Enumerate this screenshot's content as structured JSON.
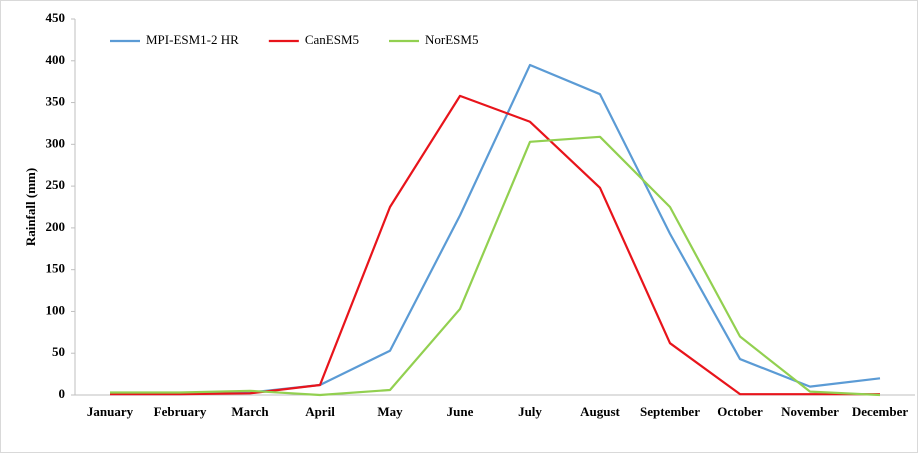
{
  "chart_data": {
    "type": "line",
    "ylabel": "Rainfall (mm)",
    "categories": [
      "January",
      "February",
      "March",
      "April",
      "May",
      "June",
      "July",
      "August",
      "September",
      "October",
      "November",
      "December"
    ],
    "series": [
      {
        "name": "MPI-ESM1-2 HR",
        "color": "#5b9bd5",
        "values": [
          1,
          1,
          3,
          12,
          53,
          215,
          395,
          360,
          193,
          43,
          10,
          20
        ]
      },
      {
        "name": "CanESM5",
        "color": "#e8141b",
        "values": [
          1,
          1,
          2,
          12,
          225,
          358,
          327,
          248,
          62,
          1,
          1,
          1
        ]
      },
      {
        "name": "NorESM5",
        "color": "#92d050",
        "values": [
          3,
          3,
          5,
          0,
          6,
          103,
          303,
          309,
          225,
          70,
          4,
          0
        ]
      }
    ],
    "ylim": [
      0,
      450
    ],
    "yticks": [
      0,
      50,
      100,
      150,
      200,
      250,
      300,
      350,
      400,
      450
    ],
    "grid": false,
    "legend": "top-left"
  }
}
